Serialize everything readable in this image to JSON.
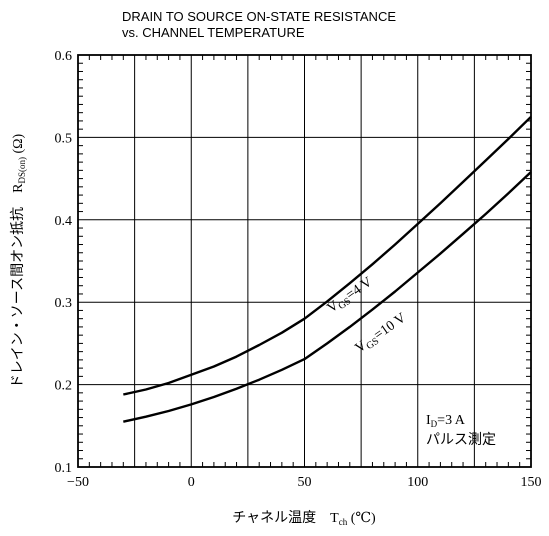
{
  "chart_data": {
    "type": "line",
    "title_lines": [
      "DRAIN TO SOURCE ON-STATE RESISTANCE",
      "vs. CHANNEL TEMPERATURE"
    ],
    "xlabel": {
      "main": "チャネル温度　T",
      "sub": "ch",
      "unit": "(℃)"
    },
    "ylabel": {
      "main": "ドレイン・ソース間オン抵抗　R",
      "sub": "DS(on)",
      "unit": "(Ω)"
    },
    "xlim": [
      -50,
      150
    ],
    "ylim": [
      0.1,
      0.6
    ],
    "xticks": [
      -50,
      0,
      50,
      100,
      150
    ],
    "xtick_labels": [
      "−50",
      "0",
      "50",
      "100",
      "150"
    ],
    "yticks": [
      0.1,
      0.2,
      0.3,
      0.4,
      0.5,
      0.6
    ],
    "ytick_labels": [
      "0.1",
      "0.2",
      "0.3",
      "0.4",
      "0.5",
      "0.6"
    ],
    "grid": true,
    "series": [
      {
        "name": "VGS=4 V",
        "label_main": "V",
        "label_sub": "GS",
        "label_rest": "=4 V",
        "x": [
          -30,
          -20,
          -10,
          0,
          10,
          20,
          30,
          40,
          50,
          60,
          70,
          80,
          90,
          100,
          110,
          120,
          130,
          140,
          150
        ],
        "y": [
          0.188,
          0.194,
          0.202,
          0.212,
          0.222,
          0.234,
          0.248,
          0.263,
          0.28,
          0.301,
          0.323,
          0.346,
          0.37,
          0.395,
          0.42,
          0.446,
          0.472,
          0.498,
          0.525
        ]
      },
      {
        "name": "VGS=10 V",
        "label_main": "V",
        "label_sub": "GS",
        "label_rest": "=10 V",
        "x": [
          -30,
          -20,
          -10,
          0,
          10,
          20,
          30,
          40,
          50,
          60,
          70,
          80,
          90,
          100,
          110,
          120,
          130,
          140,
          150
        ],
        "y": [
          0.155,
          0.161,
          0.168,
          0.176,
          0.185,
          0.195,
          0.206,
          0.218,
          0.231,
          0.25,
          0.27,
          0.291,
          0.313,
          0.336,
          0.359,
          0.383,
          0.407,
          0.432,
          0.458
        ]
      }
    ],
    "condition_lines": [
      {
        "main": "I",
        "sub": "D",
        "rest": "=3 A"
      },
      {
        "main": "パルス測定",
        "sub": "",
        "rest": ""
      }
    ]
  }
}
